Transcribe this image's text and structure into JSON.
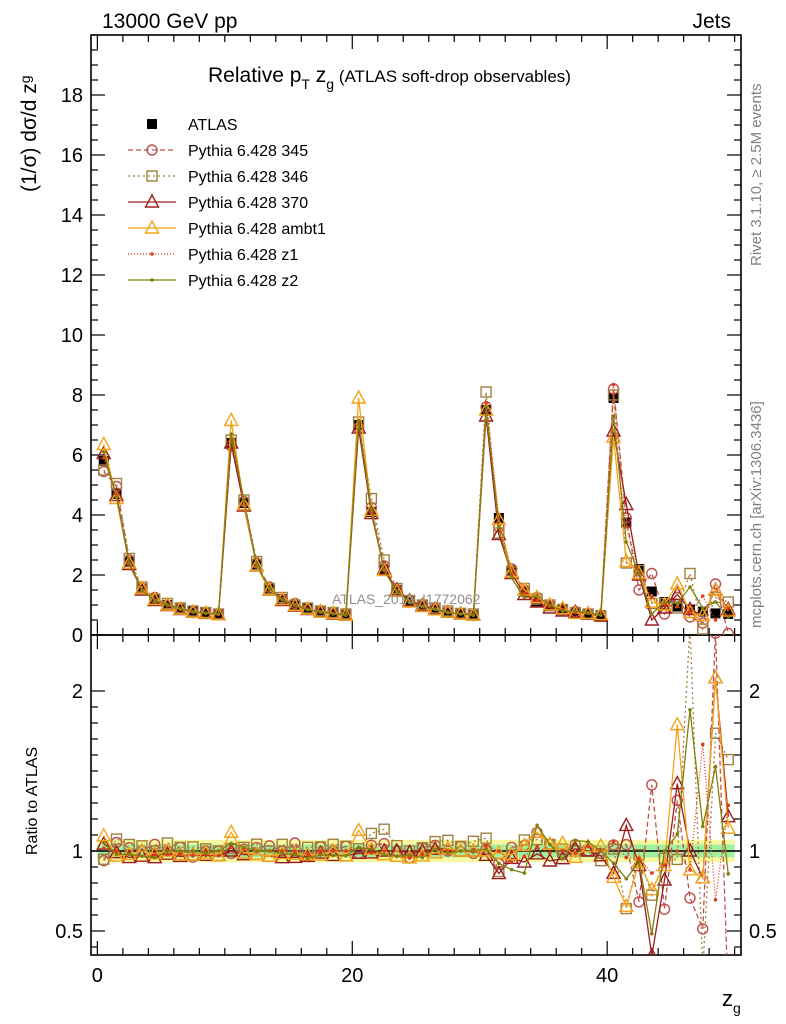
{
  "header": {
    "left": "13000 GeV pp",
    "right": "Jets"
  },
  "side": {
    "rivet": "Rivet 3.1.10, ≥ 2.5M events",
    "mcplots": "mcplots.cern.ch [arXiv:1306.3436]"
  },
  "watermark": "ATLAS_2019_I1772062",
  "chart_data": [
    {
      "type": "line",
      "title": "Relative p_T z_g (ATLAS soft-drop observables)",
      "title_parts": {
        "a": "Relative p",
        "b": "T",
        "c": " z",
        "d": "g",
        "e": " (ATLAS soft-drop observables)"
      },
      "ylabel": "(1/σ) dσ/d z_g",
      "ylabel_parts": {
        "a": "(1/σ) dσ/d z",
        "b": "g"
      },
      "xlabel": "z_g",
      "xlabel_parts": {
        "a": "z",
        "b": "g"
      },
      "xlim": [
        -0.5,
        50.5
      ],
      "ylim": [
        0,
        20
      ],
      "xticks": [
        0,
        20,
        40
      ],
      "yticks": [
        0,
        2,
        4,
        6,
        8,
        10,
        12,
        14,
        16,
        18
      ],
      "legend_position": "top-left",
      "x": [
        0.5,
        1.5,
        2.5,
        3.5,
        4.5,
        5.5,
        6.5,
        7.5,
        8.5,
        9.5,
        10.5,
        11.5,
        12.5,
        13.5,
        14.5,
        15.5,
        16.5,
        17.5,
        18.5,
        19.5,
        20.5,
        21.5,
        22.5,
        23.5,
        24.5,
        25.5,
        26.5,
        27.5,
        28.5,
        29.5,
        30.5,
        31.5,
        32.5,
        33.5,
        34.5,
        35.5,
        36.5,
        37.5,
        38.5,
        39.5,
        40.5,
        41.5,
        42.5,
        43.5,
        44.5,
        45.5,
        46.5,
        47.5,
        48.5,
        49.5
      ],
      "series": [
        {
          "name": "ATLAS",
          "color": "#000000",
          "marker": "filled-square",
          "dash": "none",
          "values": [
            5.8,
            4.7,
            2.45,
            1.55,
            1.2,
            1.0,
            0.88,
            0.78,
            0.74,
            0.7,
            6.4,
            4.4,
            2.35,
            1.55,
            1.2,
            1.0,
            0.88,
            0.78,
            0.72,
            0.68,
            7.0,
            4.1,
            2.2,
            1.5,
            1.15,
            0.98,
            0.85,
            0.75,
            0.7,
            0.66,
            7.5,
            3.9,
            2.15,
            1.45,
            1.12,
            0.96,
            0.84,
            0.75,
            0.7,
            0.66,
            7.9,
            3.75,
            2.2,
            1.45,
            1.1,
            0.95,
            0.85,
            0.78,
            0.72,
            0.7
          ]
        },
        {
          "name": "Pythia 6.428 345",
          "color": "#c0504d",
          "marker": "open-circle",
          "dash": "5,3",
          "values": [
            5.45,
            4.95,
            2.5,
            1.55,
            1.25,
            1.0,
            0.9,
            0.75,
            0.74,
            0.7,
            6.3,
            4.45,
            2.4,
            1.6,
            1.2,
            1.05,
            0.85,
            0.8,
            0.72,
            0.7,
            6.9,
            4.25,
            2.3,
            1.5,
            1.1,
            1.0,
            0.88,
            0.75,
            0.72,
            0.65,
            7.6,
            3.6,
            2.2,
            1.5,
            1.25,
            1.0,
            0.82,
            0.78,
            0.7,
            0.65,
            8.2,
            3.9,
            1.5,
            2.05,
            0.7,
            1.25,
            0.6,
            0.4,
            1.7,
            0.05
          ]
        },
        {
          "name": "Pythia 6.428 346",
          "color": "#a08040",
          "marker": "open-square",
          "dash": "2,3",
          "values": [
            5.5,
            5.05,
            2.55,
            1.6,
            1.2,
            1.05,
            0.9,
            0.8,
            0.75,
            0.7,
            6.5,
            4.5,
            2.45,
            1.55,
            1.25,
            1.0,
            0.9,
            0.8,
            0.75,
            0.7,
            7.1,
            4.55,
            2.5,
            1.55,
            1.15,
            1.0,
            0.9,
            0.8,
            0.72,
            0.7,
            8.1,
            3.4,
            2.1,
            1.55,
            1.2,
            1.0,
            0.85,
            0.75,
            0.7,
            0.62,
            8.0,
            2.4,
            2.15,
            1.05,
            1.05,
            0.9,
            2.05,
            0.2,
            1.25,
            1.1
          ]
        },
        {
          "name": "Pythia 6.428 370",
          "color": "#9b1c1c",
          "marker": "open-triangle",
          "dash": "none",
          "values": [
            6.05,
            4.65,
            2.35,
            1.5,
            1.15,
            0.98,
            0.85,
            0.76,
            0.72,
            0.68,
            6.4,
            4.3,
            2.3,
            1.5,
            1.15,
            0.96,
            0.85,
            0.77,
            0.7,
            0.66,
            6.9,
            4.05,
            2.2,
            1.5,
            1.14,
            0.98,
            0.86,
            0.76,
            0.7,
            0.66,
            7.3,
            3.35,
            2.05,
            1.35,
            1.1,
            0.9,
            0.8,
            0.76,
            0.7,
            0.64,
            6.8,
            4.35,
            2.0,
            0.5,
            0.9,
            1.35,
            0.85,
            0.65,
            1.5,
            0.85
          ]
        },
        {
          "name": "Pythia 6.428 ambt1",
          "color": "#f5a31a",
          "marker": "open-triangle",
          "dash": "none",
          "values": [
            6.35,
            4.55,
            2.4,
            1.55,
            1.18,
            1.0,
            0.86,
            0.76,
            0.73,
            0.68,
            7.15,
            4.35,
            2.3,
            1.5,
            1.18,
            0.98,
            0.86,
            0.76,
            0.72,
            0.66,
            7.9,
            4.15,
            2.15,
            1.45,
            1.1,
            0.95,
            0.84,
            0.76,
            0.7,
            0.66,
            7.5,
            3.85,
            2.1,
            1.5,
            1.25,
            1.0,
            0.88,
            0.72,
            0.72,
            0.68,
            6.6,
            2.45,
            2.05,
            1.1,
            1.0,
            1.7,
            0.75,
            0.65,
            1.5,
            0.8
          ]
        },
        {
          "name": "Pythia 6.428 z1",
          "color": "#e03a1a",
          "marker": "small-dot",
          "dash": "1,2",
          "values": [
            5.9,
            4.7,
            2.4,
            1.5,
            1.17,
            0.98,
            0.86,
            0.76,
            0.72,
            0.68,
            6.55,
            4.45,
            2.35,
            1.55,
            1.2,
            1.0,
            0.86,
            0.78,
            0.72,
            0.68,
            7.15,
            4.05,
            2.2,
            1.45,
            1.1,
            0.96,
            0.86,
            0.75,
            0.7,
            0.66,
            7.75,
            3.9,
            2.0,
            1.4,
            1.15,
            0.95,
            0.84,
            0.74,
            0.72,
            0.66,
            8.35,
            3.6,
            2.1,
            1.25,
            1.0,
            0.95,
            0.75,
            1.3,
            0.5,
            0.9
          ]
        },
        {
          "name": "Pythia 6.428 z2",
          "color": "#808010",
          "marker": "small-dot",
          "dash": "none",
          "values": [
            6.1,
            4.6,
            2.4,
            1.5,
            1.15,
            1.0,
            0.88,
            0.78,
            0.73,
            0.7,
            6.7,
            4.5,
            2.35,
            1.55,
            1.18,
            0.98,
            0.84,
            0.76,
            0.7,
            0.66,
            7.15,
            4.15,
            2.15,
            1.45,
            1.12,
            0.94,
            0.86,
            0.74,
            0.7,
            0.66,
            7.6,
            3.6,
            1.9,
            1.25,
            1.3,
            1.0,
            0.8,
            0.8,
            0.74,
            0.66,
            7.3,
            3.1,
            2.05,
            0.7,
            1.1,
            1.05,
            1.6,
            0.9,
            1.1,
            0.6
          ]
        }
      ]
    },
    {
      "type": "line",
      "ylabel": "Ratio to ATLAS",
      "ylim": [
        0.35,
        2.35
      ],
      "yticks": [
        0.5,
        1,
        2
      ],
      "ytick_labels": [
        "0.5",
        "1",
        "2"
      ],
      "uncertainty_band": {
        "inner_color": "#a0f0a0",
        "outer_color": "#f8f8a0",
        "inner": 0.04,
        "outer": 0.07
      },
      "reference_line": 1
    }
  ]
}
